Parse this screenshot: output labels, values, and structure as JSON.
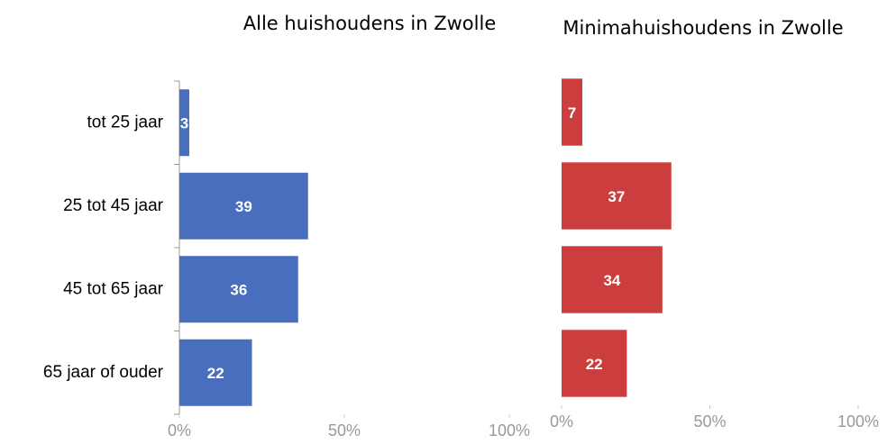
{
  "chart_data": [
    {
      "type": "bar",
      "orientation": "horizontal",
      "title": "Alle huishoudens in Zwolle",
      "categories": [
        "tot 25 jaar",
        "25 tot 45 jaar",
        "45 tot 65 jaar",
        "65 jaar of ouder"
      ],
      "values": [
        3,
        39,
        36,
        22
      ],
      "color": "#4a6ebe",
      "xlim": [
        0,
        100
      ],
      "xticks": [
        {
          "value": 0,
          "label": "0%"
        },
        {
          "value": 50,
          "label": "50%"
        },
        {
          "value": 100,
          "label": "100%"
        }
      ]
    },
    {
      "type": "bar",
      "orientation": "horizontal",
      "title": "Minimahuishoudens in Zwolle",
      "values": [
        7,
        37,
        34,
        22
      ],
      "color": "#cc3d3d",
      "xlim": [
        0,
        100
      ],
      "xticks": [
        {
          "value": 0,
          "label": "0%"
        },
        {
          "value": 50,
          "label": "50%"
        },
        {
          "value": 100,
          "label": "100%"
        }
      ]
    }
  ]
}
